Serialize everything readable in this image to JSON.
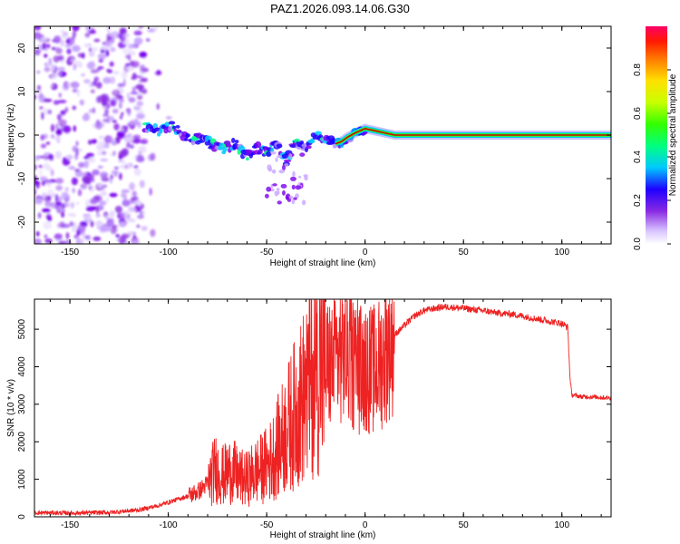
{
  "title": "PAZ1.2026.093.14.06.G30",
  "colors": {
    "snr_line": "#ee2222",
    "spectral_line": "#cc0000",
    "frame": "#000000"
  },
  "chart_data": [
    {
      "type": "heatmap",
      "xlabel": "Height of straight line (km)",
      "ylabel": "Frequency (Hz)",
      "xlim": [
        -168,
        125
      ],
      "ylim": [
        -25,
        25
      ],
      "xticks": [
        -150,
        -100,
        -50,
        0,
        50,
        100
      ],
      "yticks": [
        -20,
        -10,
        0,
        10,
        20
      ],
      "noise_region_x": [
        -168,
        -112
      ],
      "signal_trace": {
        "x": [
          -112,
          -105,
          -98,
          -93,
          -85,
          -78,
          -72,
          -66,
          -60,
          -55,
          -50,
          -45,
          -40,
          -35,
          -30,
          -25,
          -20,
          -15,
          -12,
          -9,
          -5,
          0,
          5,
          10,
          15,
          25,
          50,
          75,
          100,
          125
        ],
        "y": [
          2,
          1,
          2.5,
          0,
          -1,
          -2,
          -3,
          -2,
          -5,
          -3,
          -4,
          -2,
          -6,
          -1,
          -3,
          0,
          -1,
          -2,
          -1.5,
          -0.5,
          0.5,
          1.5,
          1,
          0.5,
          0,
          0,
          0,
          0,
          0,
          0
        ]
      },
      "colorbar": {
        "label": "Normalized spectral amplitude",
        "range": [
          0,
          1
        ],
        "ticks": [
          0.0,
          0.2,
          0.4,
          0.6,
          0.8
        ],
        "tick_labels": [
          "0.0",
          "0.2",
          "0.4",
          "0.6",
          "0.8"
        ]
      }
    },
    {
      "type": "line",
      "xlabel": "Height of straight line (km)",
      "ylabel": "SNR (10 * v/v)",
      "xlim": [
        -168,
        125
      ],
      "ylim": [
        0,
        5800
      ],
      "xticks": [
        -150,
        -100,
        -50,
        0,
        50,
        100
      ],
      "yticks": [
        0,
        1000,
        2000,
        3000,
        4000,
        5000
      ],
      "series": [
        {
          "name": "SNR",
          "x": [
            -168,
            -150,
            -130,
            -115,
            -105,
            -98,
            -92,
            -88,
            -84,
            -80,
            -76,
            -72,
            -68,
            -64,
            -60,
            -56,
            -52,
            -48,
            -44,
            -40,
            -36,
            -32,
            -28,
            -24,
            -20,
            -16,
            -12,
            -8,
            -4,
            0,
            4,
            8,
            12,
            16,
            20,
            25,
            30,
            35,
            40,
            45,
            50,
            55,
            60,
            65,
            70,
            75,
            80,
            85,
            90,
            95,
            100,
            103,
            104,
            105,
            110,
            115,
            120,
            125
          ],
          "y": [
            110,
            100,
            115,
            180,
            300,
            420,
            520,
            600,
            700,
            900,
            1300,
            1100,
            1250,
            1050,
            1000,
            1200,
            1300,
            1500,
            1900,
            2300,
            2700,
            3100,
            3600,
            4200,
            4000,
            4100,
            4400,
            4300,
            3900,
            4000,
            3900,
            4100,
            4600,
            4900,
            5100,
            5350,
            5500,
            5550,
            5600,
            5580,
            5560,
            5520,
            5500,
            5450,
            5420,
            5400,
            5350,
            5300,
            5250,
            5200,
            5150,
            5050,
            3800,
            3250,
            3200,
            3200,
            3180,
            3170
          ]
        }
      ]
    }
  ]
}
